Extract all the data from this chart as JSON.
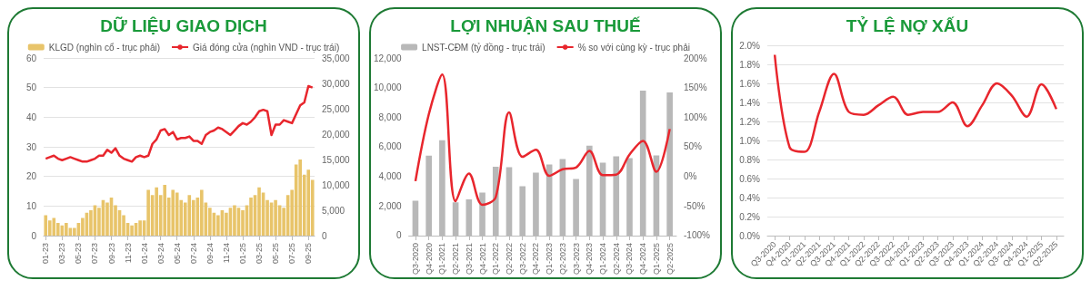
{
  "chart_data": [
    {
      "type": "bar",
      "title": "DỮ LIỆU GIAO DỊCH",
      "categories": [
        "01-23",
        null,
        null,
        null,
        "03-23",
        null,
        null,
        null,
        "05-23",
        null,
        null,
        null,
        "07-23",
        null,
        null,
        null,
        "09-23",
        null,
        null,
        null,
        "11-23",
        null,
        null,
        null,
        "01-24",
        null,
        null,
        null,
        "03-24",
        null,
        null,
        null,
        "05-24",
        null,
        null,
        null,
        "07-24",
        null,
        null,
        null,
        "09-24",
        null,
        null,
        null,
        "11-24",
        null,
        null,
        null,
        "01-25",
        null,
        null,
        null,
        "03-25",
        null,
        null,
        null,
        "05-25",
        null,
        null,
        null,
        "07-25",
        null,
        null,
        null,
        "09-25",
        null
      ],
      "series": [
        {
          "name": "KLGD (nghìn cổ - trục phải)",
          "axis": "y2",
          "color": "#e8c46a",
          "values": [
            4000,
            3000,
            3500,
            2500,
            2000,
            2500,
            1500,
            1500,
            2500,
            3500,
            4500,
            5000,
            6000,
            5500,
            7000,
            6500,
            7500,
            6000,
            5000,
            4000,
            2500,
            2000,
            2500,
            3000,
            3000,
            9000,
            8000,
            9500,
            8000,
            10000,
            7500,
            9000,
            8500,
            7000,
            6500,
            8000,
            7000,
            7500,
            9000,
            6500,
            5500,
            4500,
            4000,
            5000,
            4500,
            5500,
            6000,
            5500,
            5000,
            6000,
            7500,
            8000,
            9500,
            8500,
            7000,
            6500,
            7000,
            6000,
            5500,
            8000,
            9000,
            14000,
            15000,
            12000,
            13000,
            11000
          ]
        },
        {
          "name": "Giá đóng cửa (nghìn VND - trục trái)",
          "type": "line",
          "axis": "y",
          "color": "#e8262d",
          "values": [
            26,
            26.5,
            27,
            26,
            25.5,
            26,
            26.5,
            26,
            25.5,
            25,
            25,
            25.5,
            26,
            27,
            27,
            29,
            28,
            29.5,
            27,
            26,
            25.5,
            25,
            26.5,
            27,
            26.5,
            27,
            31,
            32.5,
            35.5,
            36,
            34,
            35,
            32.5,
            33,
            33,
            33.5,
            32,
            32,
            31,
            34,
            35,
            35.5,
            36.5,
            36,
            35,
            34,
            35.5,
            37,
            38,
            37.5,
            38.5,
            40,
            42,
            42.5,
            42,
            34,
            37.5,
            37.5,
            39,
            38.5,
            38,
            41,
            44,
            45,
            50.5,
            50
          ]
        }
      ],
      "ylim": [
        0,
        60
      ],
      "yticks": [
        0,
        10,
        20,
        30,
        40,
        50,
        60
      ],
      "y2lim": [
        0,
        35000
      ],
      "y2ticks": [
        0,
        {
          "value": 5000,
          "label": "5,000"
        },
        {
          "value": 10000,
          "label": "10,000"
        },
        {
          "value": 15000,
          "label": "15,000"
        },
        {
          "value": 20000,
          "label": "20,000"
        },
        {
          "value": 25000,
          "label": "25,000"
        },
        {
          "value": 30000,
          "label": "30,000"
        },
        {
          "value": 35000,
          "label": "35,000"
        }
      ],
      "grid": "y",
      "legend": "top",
      "marker": "none"
    },
    {
      "type": "bar",
      "title": "LỢI NHUẬN SAU THUẾ",
      "categories": [
        "Q3-2020",
        "Q4-2020",
        "Q1-2021",
        "Q2-2021",
        "Q3-2021",
        "Q4-2021",
        "Q1-2022",
        "Q2-2022",
        "Q3-2022",
        "Q4-2022",
        "Q1-2023",
        "Q2-2023",
        "Q3-2023",
        "Q4-2023",
        "Q1-2024",
        "Q2-2024",
        "Q3-2024",
        "Q4-2024",
        "Q1-2025",
        "Q2-2025"
      ],
      "series": [
        {
          "name": "LNST-CĐM (tỷ đồng - trục trái)",
          "axis": "y",
          "color": "#b8b8b8",
          "values": [
            2350,
            5400,
            6450,
            2250,
            2450,
            2900,
            4650,
            4620,
            3330,
            4250,
            4800,
            5180,
            3830,
            6080,
            4930,
            5350,
            5230,
            9800,
            5420,
            9680
          ]
        },
        {
          "name": "% so với cùng kỳ - trục phải",
          "type": "line",
          "axis": "y2",
          "color": "#e8262d",
          "values": [
            -8,
            105,
            172,
            -42,
            5,
            -48,
            -35,
            108,
            33,
            45,
            1,
            12,
            15,
            43,
            2,
            3,
            37,
            60,
            8,
            80
          ]
        }
      ],
      "ylim": [
        0,
        12000
      ],
      "yticks": [
        0,
        {
          "value": 2000,
          "label": "2,000"
        },
        {
          "value": 4000,
          "label": "4,000"
        },
        {
          "value": 6000,
          "label": "6,000"
        },
        {
          "value": 8000,
          "label": "8,000"
        },
        {
          "value": 10000,
          "label": "10,000"
        },
        {
          "value": 12000,
          "label": "12,000"
        }
      ],
      "y2lim": [
        -100,
        200
      ],
      "y2ticks": [
        {
          "value": -100,
          "label": "-100%"
        },
        {
          "value": -50,
          "label": "-50%"
        },
        {
          "value": 0,
          "label": "0%"
        },
        {
          "value": 50,
          "label": "50%"
        },
        {
          "value": 100,
          "label": "100%"
        },
        {
          "value": 150,
          "label": "150%"
        },
        {
          "value": 200,
          "label": "200%"
        }
      ],
      "legend": "top",
      "marker": "none"
    },
    {
      "type": "line",
      "title": "TỶ LỆ NỢ XẤU",
      "categories": [
        "Q3-2020",
        "Q4-2020",
        "Q1-2021",
        "Q2-2021",
        "Q3-2021",
        "Q4-2021",
        "Q1-2022",
        "Q2-2022",
        "Q3-2022",
        "Q4-2022",
        "Q1-2023",
        "Q2-2023",
        "Q3-2023",
        "Q4-2023",
        "Q1-2024",
        "Q2-2024",
        "Q3-2024",
        "Q4-2024",
        "Q1-2025",
        "Q2-2025"
      ],
      "series": [
        {
          "color": "#e8262d",
          "values": [
            1.9,
            0.93,
            0.88,
            1.3,
            1.7,
            1.3,
            1.27,
            1.37,
            1.46,
            1.27,
            1.3,
            1.3,
            1.4,
            1.15,
            1.37,
            1.6,
            1.47,
            1.25,
            1.59,
            1.33
          ]
        }
      ],
      "ylim": [
        0,
        2
      ],
      "yticks": [
        {
          "value": 0,
          "label": "0.0%"
        },
        {
          "value": 0.2,
          "label": "0.2%"
        },
        {
          "value": 0.4,
          "label": "0.4%"
        },
        {
          "value": 0.6,
          "label": "0.6%"
        },
        {
          "value": 0.8,
          "label": "0.8%"
        },
        {
          "value": 1,
          "label": "1.0%"
        },
        {
          "value": 1.2,
          "label": "1.2%"
        },
        {
          "value": 1.4,
          "label": "1.4%"
        },
        {
          "value": 1.6,
          "label": "1.6%"
        },
        {
          "value": 1.8,
          "label": "1.8%"
        },
        {
          "value": 2,
          "label": "2.0%"
        }
      ],
      "grid": "y",
      "marker": "none"
    }
  ]
}
